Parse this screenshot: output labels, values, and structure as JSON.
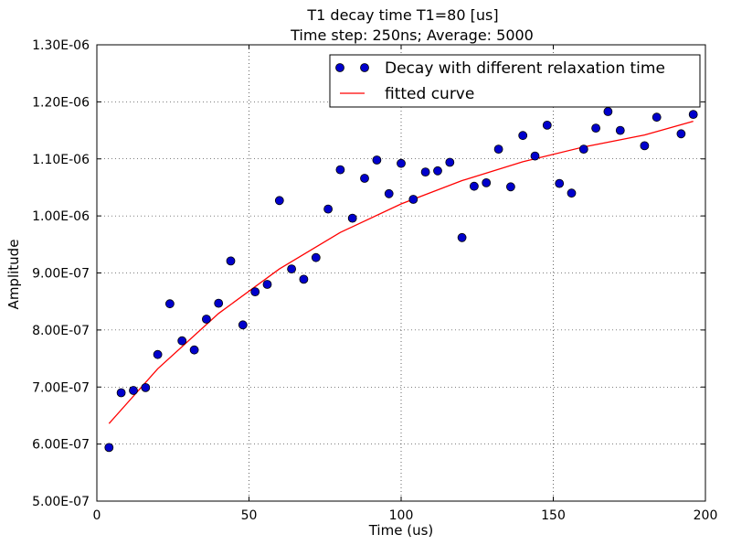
{
  "chart_data": {
    "type": "scatter",
    "title": "T1 decay time T1=80 [us]",
    "subtitle": "Time step: 250ns; Average: 5000",
    "xlabel": "Time (us)",
    "ylabel": "Amplitude",
    "xlim": [
      0,
      200
    ],
    "ylim": [
      5e-07,
      1.3e-06
    ],
    "xticks": [
      0,
      50,
      100,
      150,
      200
    ],
    "xtick_labels": [
      "0",
      "50",
      "100",
      "150",
      "200"
    ],
    "yticks": [
      5e-07,
      6e-07,
      7e-07,
      8e-07,
      9e-07,
      1e-06,
      1.1e-06,
      1.2e-06,
      1.3e-06
    ],
    "ytick_labels": [
      "5.00E-07",
      "6.00E-07",
      "7.00E-07",
      "8.00E-07",
      "9.00E-07",
      "1.00E-06",
      "1.10E-06",
      "1.20E-06",
      "1.30E-06"
    ],
    "grid": true,
    "legend_position": "top-right",
    "series": [
      {
        "name": "Decay with different relaxation time",
        "kind": "scatter",
        "color": "#0000cc",
        "x": [
          4,
          8,
          12,
          16,
          20,
          24,
          28,
          32,
          36,
          40,
          44,
          48,
          52,
          56,
          60,
          64,
          68,
          72,
          76,
          80,
          84,
          88,
          92,
          96,
          100,
          104,
          108,
          112,
          116,
          120,
          124,
          128,
          132,
          136,
          140,
          144,
          148,
          152,
          156,
          160,
          164,
          168,
          172,
          180,
          184,
          192,
          196
        ],
        "y": [
          5.94e-07,
          6.9e-07,
          6.94e-07,
          6.99e-07,
          7.57e-07,
          8.46e-07,
          7.81e-07,
          7.65e-07,
          8.19e-07,
          8.47e-07,
          9.21e-07,
          8.09e-07,
          8.67e-07,
          8.8e-07,
          1.027e-06,
          9.07e-07,
          8.89e-07,
          9.27e-07,
          1.012e-06,
          1.081e-06,
          9.96e-07,
          1.066e-06,
          1.098e-06,
          1.039e-06,
          1.092e-06,
          1.029e-06,
          1.077e-06,
          1.079e-06,
          1.094e-06,
          9.62e-07,
          1.052e-06,
          1.058e-06,
          1.117e-06,
          1.051e-06,
          1.141e-06,
          1.105e-06,
          1.159e-06,
          1.057e-06,
          1.04e-06,
          1.117e-06,
          1.154e-06,
          1.183e-06,
          1.15e-06,
          1.123e-06,
          1.173e-06,
          1.144e-06,
          1.178e-06
        ]
      },
      {
        "name": "fitted curve",
        "kind": "line",
        "color": "#ff0000",
        "x": [
          4,
          20,
          40,
          60,
          80,
          100,
          120,
          140,
          160,
          180,
          196
        ],
        "y": [
          6.36e-07,
          7.32e-07,
          8.29e-07,
          9.07e-07,
          9.71e-07,
          1.021e-06,
          1.062e-06,
          1.095e-06,
          1.121e-06,
          1.142e-06,
          1.166e-06
        ]
      }
    ]
  }
}
